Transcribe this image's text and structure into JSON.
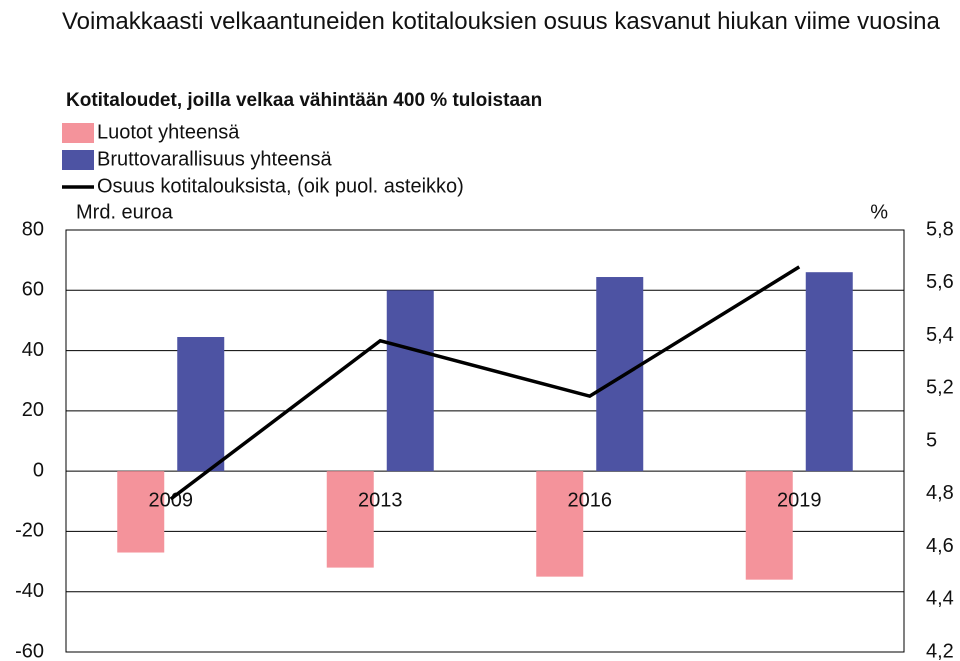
{
  "chart_data": {
    "type": "bar_line",
    "title": "Voimakkaasti velkaantuneiden kotitalouksien osuus kasvanut hiukan viime vuosina",
    "subtitle": "Kotitaloudet, joilla velkaa vähintään 400 % tuloistaan",
    "ylabel": "Mrd. euroa",
    "y2label": "%",
    "categories": [
      "2009",
      "2013",
      "2016",
      "2019"
    ],
    "series": [
      {
        "name": "Luotot yhteensä",
        "type": "bar",
        "color": "#f4939b",
        "values": [
          -27,
          -32,
          -35,
          -36
        ]
      },
      {
        "name": "Bruttovarallisuus yhteensä",
        "type": "bar",
        "color": "#4d53a3",
        "values": [
          44.5,
          60,
          64.4,
          66
        ]
      },
      {
        "name": "Osuus kotitalouksista,  (oik puol. asteikko)",
        "type": "line",
        "axis": "y2",
        "color": "#000000",
        "values": [
          4.78,
          5.38,
          5.17,
          5.66
        ]
      }
    ],
    "ylim": [
      -60,
      80
    ],
    "yticks": [
      80,
      60,
      40,
      20,
      0,
      -20,
      -40,
      -60
    ],
    "y2lim": [
      4.2,
      5.8
    ],
    "y2ticks": [
      {
        "value": 5.8,
        "label": "5,8"
      },
      {
        "value": 5.6,
        "label": "5,6"
      },
      {
        "value": 5.4,
        "label": "5,4"
      },
      {
        "value": 5.2,
        "label": "5,2"
      },
      5,
      {
        "value": 4.8,
        "label": "4,8"
      },
      {
        "value": 4.6,
        "label": "4,6"
      },
      {
        "value": 4.4,
        "label": "4,4"
      },
      {
        "value": 4.2,
        "label": "4,2"
      }
    ],
    "grid": true
  }
}
